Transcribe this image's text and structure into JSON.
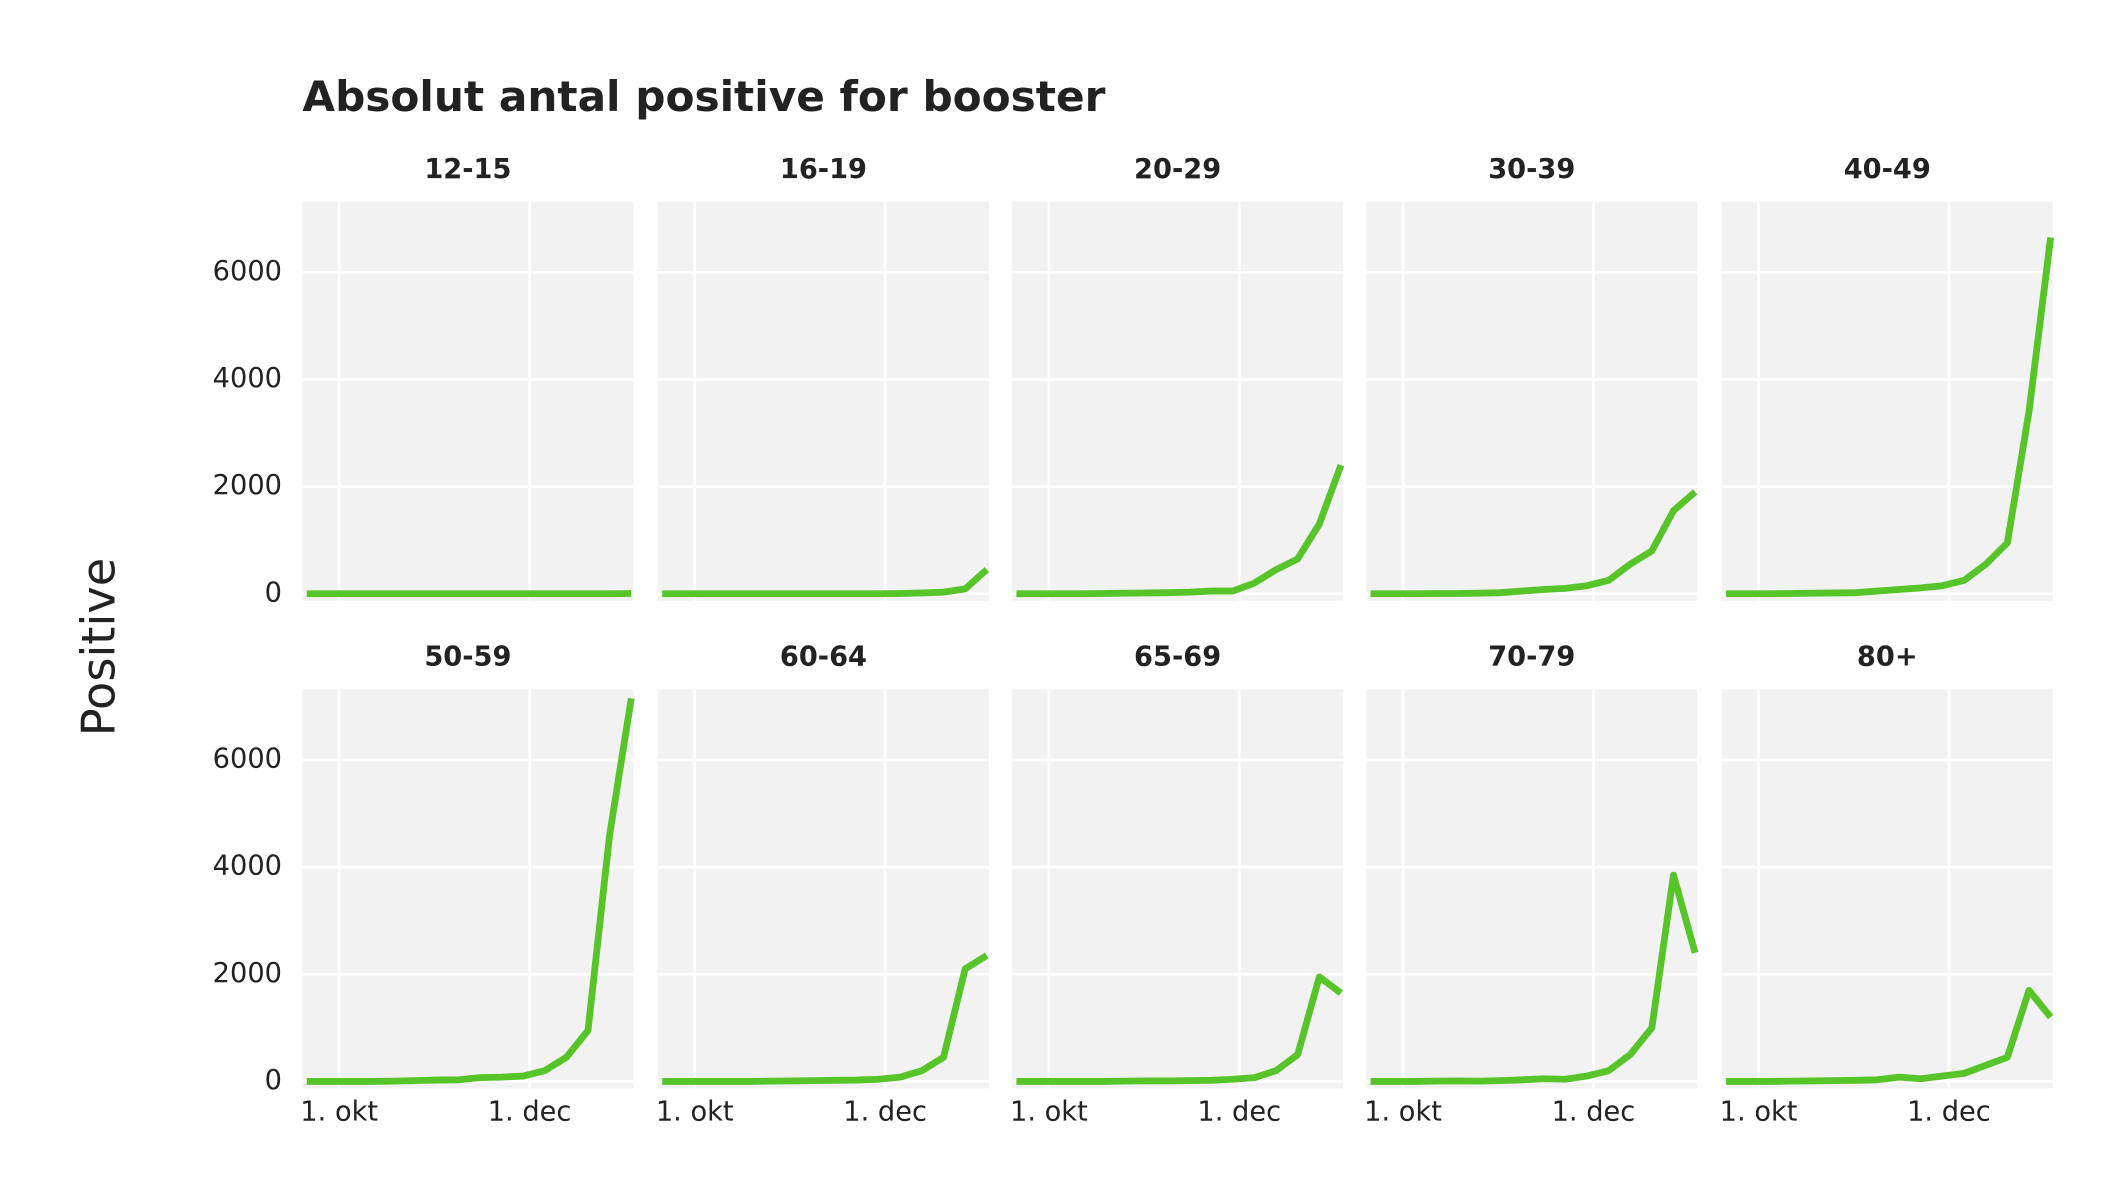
{
  "chart_data": {
    "type": "line",
    "title": "Absolut antal positive for booster",
    "y_label": "Positive",
    "color": "#57c42a",
    "grid": true,
    "x": [
      0,
      1,
      2,
      3,
      4,
      5,
      6,
      7,
      8,
      9,
      10,
      11,
      12,
      13,
      14,
      15
    ],
    "xlim": [
      -0.2,
      15.1
    ],
    "xticks": [
      {
        "value": 1.5,
        "label": "1. okt"
      },
      {
        "value": 10.3,
        "label": "1. dec"
      }
    ],
    "ylim": [
      -130,
      7320
    ],
    "yticks": [
      0,
      2000,
      4000,
      6000
    ],
    "series": [
      {
        "name": "12-15",
        "values": [
          0,
          0,
          0,
          0,
          0,
          0,
          0,
          0,
          0,
          0,
          0,
          0,
          0,
          0,
          0,
          5
        ]
      },
      {
        "name": "16-19",
        "values": [
          0,
          0,
          0,
          0,
          0,
          0,
          0,
          0,
          0,
          0,
          0,
          5,
          15,
          30,
          90,
          450
        ]
      },
      {
        "name": "20-29",
        "values": [
          0,
          0,
          0,
          0,
          5,
          10,
          15,
          20,
          30,
          50,
          50,
          200,
          450,
          650,
          1300,
          2400
        ]
      },
      {
        "name": "30-39",
        "values": [
          0,
          0,
          0,
          5,
          5,
          10,
          20,
          50,
          80,
          100,
          150,
          250,
          550,
          800,
          1550,
          1900
        ]
      },
      {
        "name": "40-49",
        "values": [
          0,
          0,
          0,
          5,
          10,
          15,
          20,
          50,
          80,
          110,
          150,
          250,
          550,
          950,
          3400,
          6650
        ]
      },
      {
        "name": "50-59",
        "values": [
          0,
          0,
          0,
          0,
          5,
          15,
          25,
          30,
          70,
          80,
          100,
          200,
          450,
          950,
          4600,
          7150
        ]
      },
      {
        "name": "60-64",
        "values": [
          0,
          0,
          0,
          0,
          0,
          5,
          10,
          15,
          20,
          25,
          40,
          80,
          200,
          450,
          2100,
          2350
        ]
      },
      {
        "name": "65-69",
        "values": [
          0,
          0,
          0,
          0,
          0,
          5,
          10,
          10,
          15,
          20,
          40,
          70,
          200,
          500,
          1950,
          1650
        ]
      },
      {
        "name": "70-79",
        "values": [
          0,
          0,
          0,
          5,
          10,
          5,
          15,
          30,
          50,
          40,
          100,
          200,
          500,
          1000,
          3850,
          2400
        ]
      },
      {
        "name": "80+",
        "values": [
          0,
          0,
          0,
          5,
          10,
          15,
          20,
          30,
          80,
          50,
          100,
          150,
          300,
          450,
          1700,
          1200
        ]
      }
    ]
  }
}
